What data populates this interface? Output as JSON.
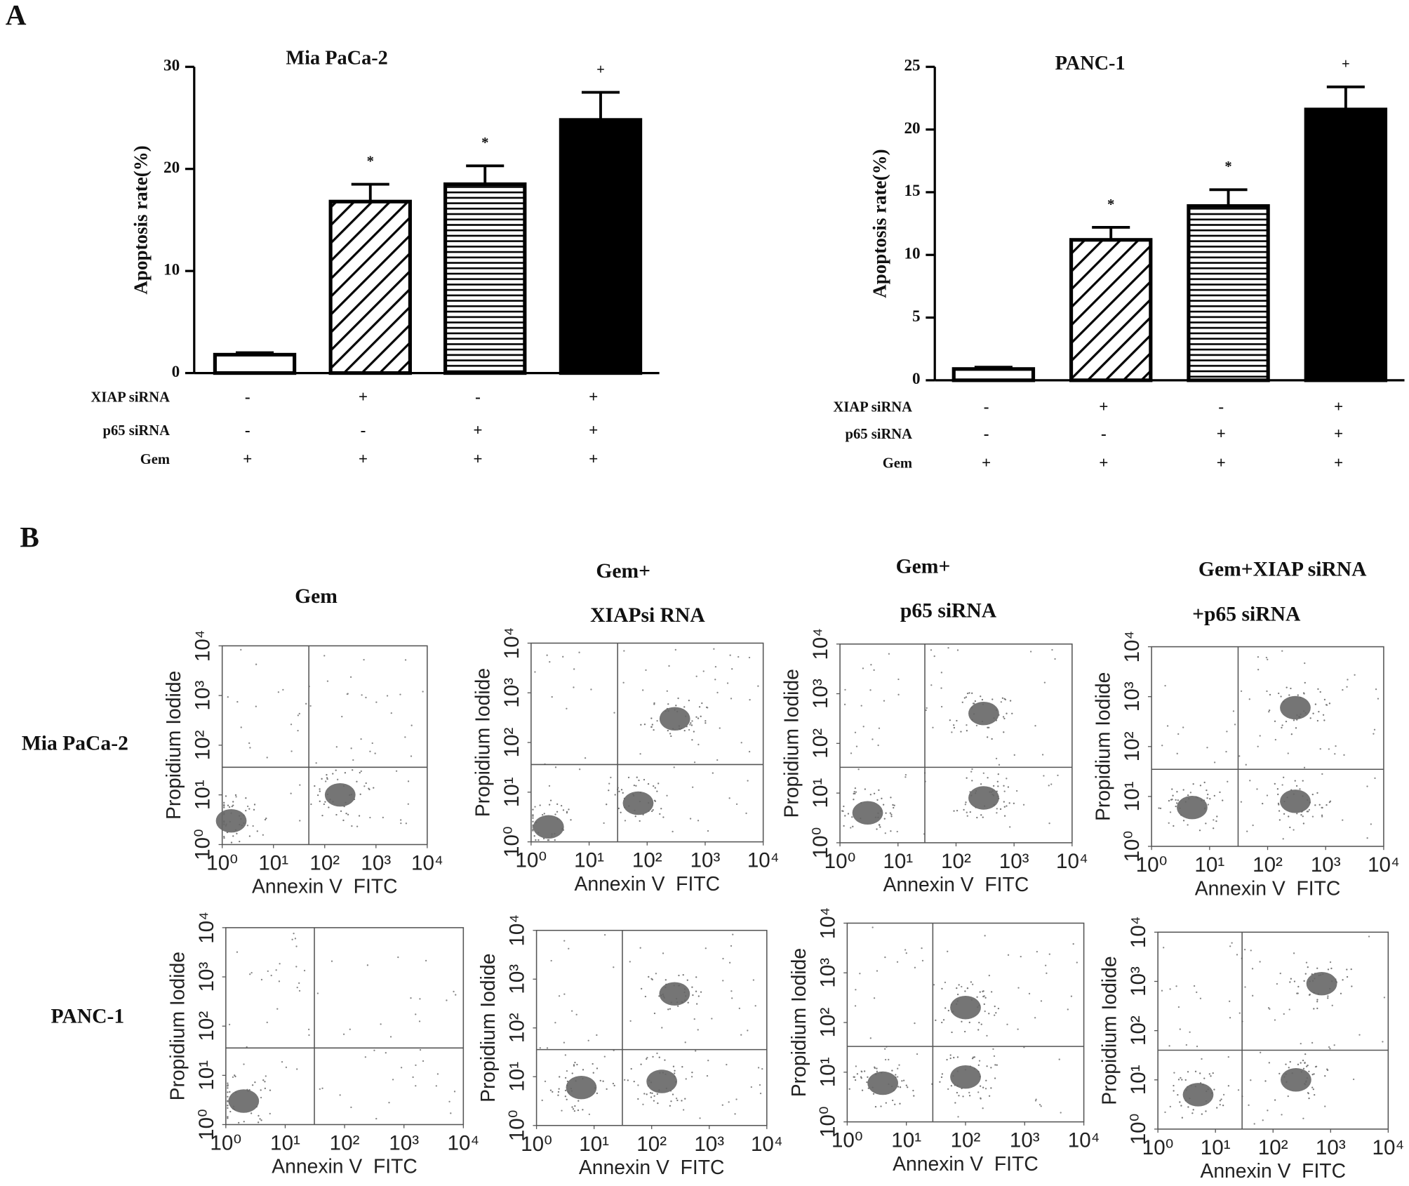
{
  "figure": {
    "panel_labels": [
      "A",
      "B"
    ],
    "row_labels": [
      "Mia PaCa-2",
      "PANC-1"
    ],
    "column_headers": [
      [
        "Gem"
      ],
      [
        "Gem+",
        "XIAPsi RNA"
      ],
      [
        "Gem+",
        "p65 siRNA"
      ],
      [
        "Gem+XIAP siRNA",
        "+p65 siRNA"
      ]
    ]
  },
  "chart_data": [
    {
      "type": "bar",
      "title": "Mia PaCa-2",
      "ylabel": "Apoptosis rate(%)",
      "values": [
        1.8,
        16.8,
        18.5,
        24.8
      ],
      "errors": [
        0.2,
        1.7,
        1.8,
        2.7
      ],
      "value_annotations": [
        null,
        "*",
        "*",
        "+"
      ],
      "bar_styles": [
        "white",
        "diagonal",
        "horizontal",
        "black"
      ],
      "ylim": [
        0,
        30
      ],
      "yticks": [
        0,
        10,
        20,
        30
      ],
      "conditions": [
        {
          "label": "XIAP siRNA",
          "marks": [
            "-",
            "+",
            "-",
            "+"
          ]
        },
        {
          "label": "p65 siRNA",
          "marks": [
            "-",
            "-",
            "+",
            "+"
          ]
        },
        {
          "label": "Gem",
          "marks": [
            "+",
            "+",
            "+",
            "+"
          ]
        }
      ]
    },
    {
      "type": "bar",
      "title": "PANC-1",
      "ylabel": "Apoptosis rate(%)",
      "values": [
        0.9,
        11.2,
        13.9,
        21.6
      ],
      "errors": [
        0.15,
        1.0,
        1.3,
        1.8
      ],
      "value_annotations": [
        null,
        "*",
        "*",
        "+"
      ],
      "bar_styles": [
        "white",
        "diagonal",
        "horizontal",
        "black"
      ],
      "ylim": [
        0,
        25
      ],
      "yticks": [
        0,
        5,
        10,
        15,
        20,
        25
      ],
      "conditions": [
        {
          "label": "XIAP siRNA",
          "marks": [
            "-",
            "+",
            "-",
            "+"
          ]
        },
        {
          "label": "p65 siRNA",
          "marks": [
            "-",
            "-",
            "+",
            "+"
          ]
        },
        {
          "label": "Gem",
          "marks": [
            "+",
            "+",
            "+",
            "+"
          ]
        }
      ]
    },
    {
      "type": "flow",
      "xlabel": "Annexin V  FITC",
      "ylabel": "Propidium Iodide",
      "log": true,
      "xlim": [
        1,
        10000
      ],
      "ylim": [
        1,
        10000
      ],
      "xticks": [
        {
          "value": 1,
          "label": "10⁰"
        },
        {
          "value": 10,
          "label": "10¹"
        },
        {
          "value": 100,
          "label": "10²"
        },
        {
          "value": 1000,
          "label": "10³"
        },
        {
          "value": 10000,
          "label": "10⁴"
        }
      ],
      "yticks": [
        {
          "value": 1,
          "label": "10⁰"
        },
        {
          "value": 10,
          "label": "10¹"
        },
        {
          "value": 100,
          "label": "10²"
        },
        {
          "value": 1000,
          "label": "10³"
        },
        {
          "value": 10000,
          "label": "10⁴"
        }
      ],
      "gate": {
        "x": 49,
        "y": 36
      },
      "populations": {
        "x": [
          1.5,
          200
        ],
        "y": [
          3,
          10
        ]
      }
    },
    {
      "type": "flow",
      "xlabel": "Annexin V  FITC",
      "ylabel": "Propidium Iodide",
      "log": true,
      "xlim": [
        1,
        10000
      ],
      "ylim": [
        1,
        10000
      ],
      "xticks": [
        {
          "value": 1,
          "label": "10⁰"
        },
        {
          "value": 10,
          "label": "10¹"
        },
        {
          "value": 100,
          "label": "10²"
        },
        {
          "value": 1000,
          "label": "10³"
        },
        {
          "value": 10000,
          "label": "10⁴"
        }
      ],
      "yticks": [
        {
          "value": 1,
          "label": "10⁰"
        },
        {
          "value": 10,
          "label": "10¹"
        },
        {
          "value": 100,
          "label": "10²"
        },
        {
          "value": 1000,
          "label": "10³"
        },
        {
          "value": 10000,
          "label": "10⁴"
        }
      ],
      "gate": {
        "x": 31,
        "y": 36
      },
      "populations": {
        "x": [
          2,
          70,
          300
        ],
        "y": [
          2,
          6,
          300
        ]
      }
    },
    {
      "type": "flow",
      "xlabel": "Annexin V  FITC",
      "ylabel": "Propidium Iodide",
      "log": true,
      "xlim": [
        1,
        10000
      ],
      "ylim": [
        1,
        10000
      ],
      "xticks": [
        {
          "value": 1,
          "label": "10⁰"
        },
        {
          "value": 10,
          "label": "10¹"
        },
        {
          "value": 100,
          "label": "10²"
        },
        {
          "value": 1000,
          "label": "10³"
        },
        {
          "value": 10000,
          "label": "10⁴"
        }
      ],
      "yticks": [
        {
          "value": 1,
          "label": "10⁰"
        },
        {
          "value": 10,
          "label": "10¹"
        },
        {
          "value": 100,
          "label": "10²"
        },
        {
          "value": 1000,
          "label": "10³"
        },
        {
          "value": 10000,
          "label": "10⁴"
        }
      ],
      "gate": {
        "x": 29,
        "y": 33
      },
      "populations": {
        "x": [
          3,
          300,
          300
        ],
        "y": [
          4,
          8,
          400
        ]
      }
    },
    {
      "type": "flow",
      "xlabel": "Annexin V  FITC",
      "ylabel": "Propidium Iodide",
      "log": true,
      "xlim": [
        1,
        10000
      ],
      "ylim": [
        1,
        10000
      ],
      "xticks": [
        {
          "value": 1,
          "label": "10⁰"
        },
        {
          "value": 10,
          "label": "10¹"
        },
        {
          "value": 100,
          "label": "10²"
        },
        {
          "value": 1000,
          "label": "10³"
        },
        {
          "value": 10000,
          "label": "10⁴"
        }
      ],
      "yticks": [
        {
          "value": 1,
          "label": "10⁰"
        },
        {
          "value": 10,
          "label": "10¹"
        },
        {
          "value": 100,
          "label": "10²"
        },
        {
          "value": 1000,
          "label": "10³"
        },
        {
          "value": 10000,
          "label": "10⁴"
        }
      ],
      "gate": {
        "x": 31,
        "y": 35
      },
      "populations": {
        "x": [
          5,
          300,
          300
        ],
        "y": [
          6,
          8,
          600
        ]
      }
    },
    {
      "type": "flow",
      "xlabel": "Annexin V  FITC",
      "ylabel": "Propidium Iodide",
      "log": true,
      "xlim": [
        1,
        10000
      ],
      "ylim": [
        1,
        10000
      ],
      "xticks": [
        {
          "value": 1,
          "label": "10⁰"
        },
        {
          "value": 10,
          "label": "10¹"
        },
        {
          "value": 100,
          "label": "10²"
        },
        {
          "value": 1000,
          "label": "10³"
        },
        {
          "value": 10000,
          "label": "10⁴"
        }
      ],
      "yticks": [
        {
          "value": 1,
          "label": "10⁰"
        },
        {
          "value": 10,
          "label": "10¹"
        },
        {
          "value": 100,
          "label": "10²"
        },
        {
          "value": 1000,
          "label": "10³"
        },
        {
          "value": 10000,
          "label": "10⁴"
        }
      ],
      "gate": {
        "x": 31,
        "y": 36
      },
      "populations": {
        "x": [
          2
        ],
        "y": [
          3
        ]
      }
    },
    {
      "type": "flow",
      "xlabel": "Annexin V  FITC",
      "ylabel": "Propidium Iodide",
      "log": true,
      "xlim": [
        1,
        10000
      ],
      "ylim": [
        1,
        10000
      ],
      "xticks": [
        {
          "value": 1,
          "label": "10⁰"
        },
        {
          "value": 10,
          "label": "10¹"
        },
        {
          "value": 100,
          "label": "10²"
        },
        {
          "value": 1000,
          "label": "10³"
        },
        {
          "value": 10000,
          "label": "10⁴"
        }
      ],
      "yticks": [
        {
          "value": 1,
          "label": "10⁰"
        },
        {
          "value": 10,
          "label": "10¹"
        },
        {
          "value": 100,
          "label": "10²"
        },
        {
          "value": 1000,
          "label": "10³"
        },
        {
          "value": 10000,
          "label": "10⁴"
        }
      ],
      "gate": {
        "x": 31,
        "y": 36
      },
      "populations": {
        "x": [
          6,
          150,
          250
        ],
        "y": [
          6,
          8,
          500
        ]
      }
    },
    {
      "type": "flow",
      "xlabel": "Annexin V  FITC",
      "ylabel": "Propidium Iodide",
      "log": true,
      "xlim": [
        1,
        10000
      ],
      "ylim": [
        1,
        10000
      ],
      "xticks": [
        {
          "value": 1,
          "label": "10⁰"
        },
        {
          "value": 10,
          "label": "10¹"
        },
        {
          "value": 100,
          "label": "10²"
        },
        {
          "value": 1000,
          "label": "10³"
        },
        {
          "value": 10000,
          "label": "10⁴"
        }
      ],
      "yticks": [
        {
          "value": 1,
          "label": "10⁰"
        },
        {
          "value": 10,
          "label": "10¹"
        },
        {
          "value": 100,
          "label": "10²"
        },
        {
          "value": 1000,
          "label": "10³"
        },
        {
          "value": 10000,
          "label": "10⁴"
        }
      ],
      "gate": {
        "x": 28,
        "y": 33
      },
      "populations": {
        "x": [
          4,
          100,
          100
        ],
        "y": [
          6,
          8,
          200
        ]
      }
    },
    {
      "type": "flow",
      "xlabel": "Annexin V  FITC",
      "ylabel": "Propidium Iodide",
      "log": true,
      "xlim": [
        1,
        10000
      ],
      "ylim": [
        1,
        10000
      ],
      "xticks": [
        {
          "value": 1,
          "label": "10⁰"
        },
        {
          "value": 10,
          "label": "10¹"
        },
        {
          "value": 100,
          "label": "10²"
        },
        {
          "value": 1000,
          "label": "10³"
        },
        {
          "value": 10000,
          "label": "10⁴"
        }
      ],
      "yticks": [
        {
          "value": 1,
          "label": "10⁰"
        },
        {
          "value": 10,
          "label": "10¹"
        },
        {
          "value": 100,
          "label": "10²"
        },
        {
          "value": 1000,
          "label": "10³"
        },
        {
          "value": 10000,
          "label": "10⁴"
        }
      ],
      "gate": {
        "x": 29,
        "y": 40
      },
      "populations": {
        "x": [
          5,
          250,
          700
        ],
        "y": [
          5,
          10,
          900
        ]
      }
    }
  ]
}
